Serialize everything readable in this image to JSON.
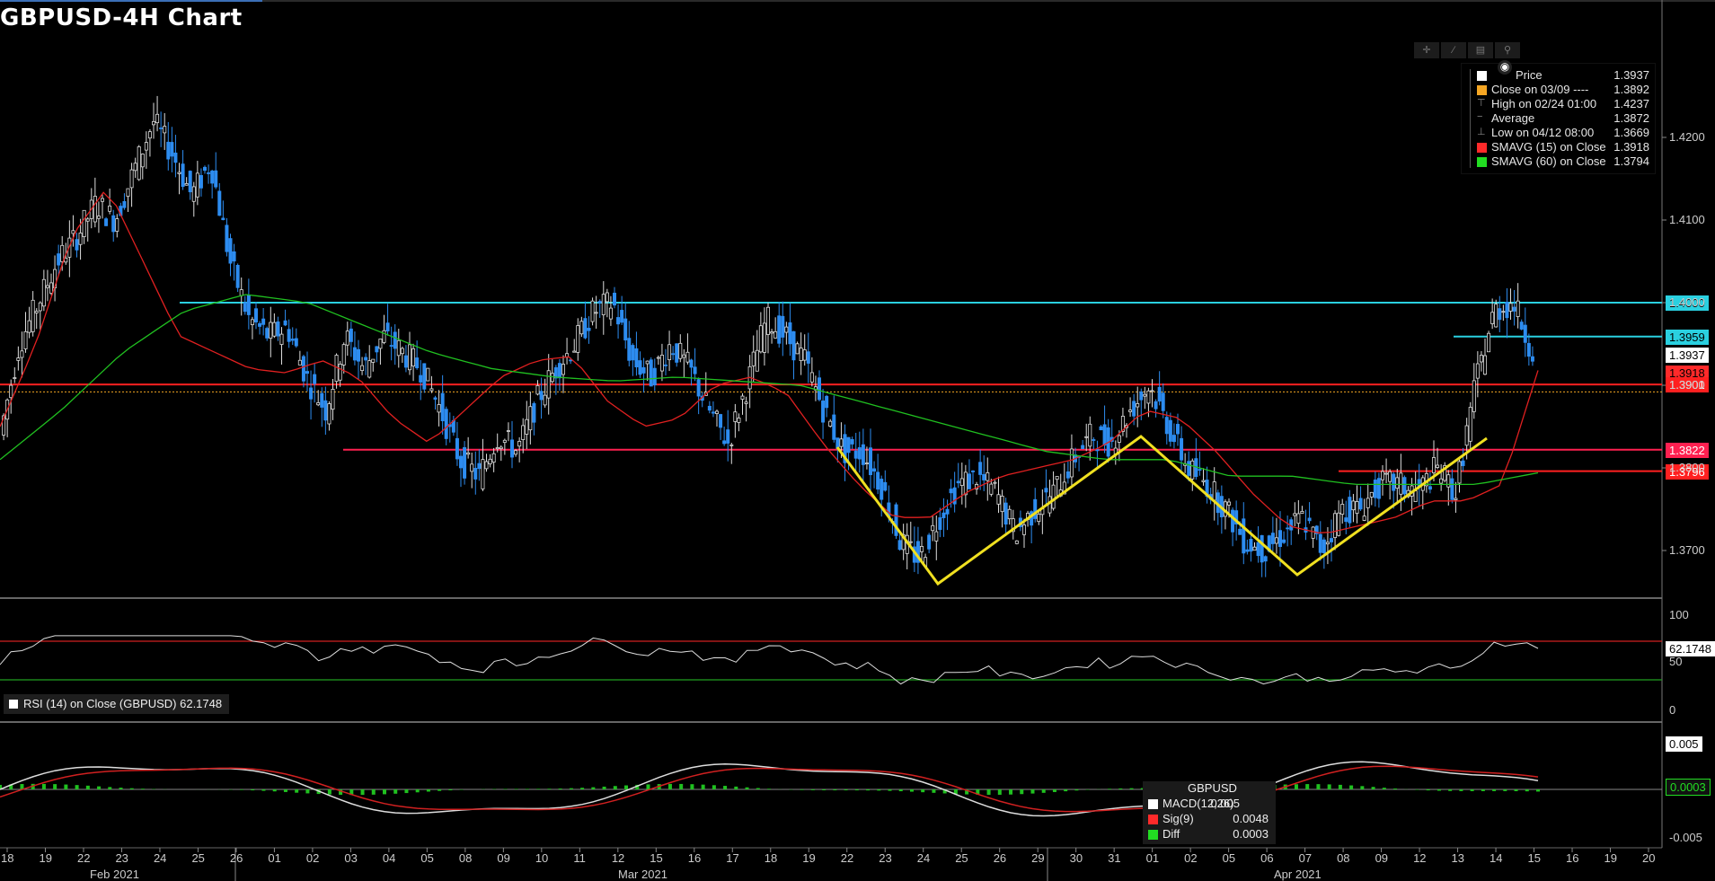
{
  "title": "GBPUSD-4H Chart",
  "toolbar": {
    "icons": [
      "crosshair-icon",
      "draw-line-icon",
      "table-icon",
      "zoom-icon"
    ]
  },
  "legend": {
    "rows": [
      {
        "label": "Price",
        "value": "1.3937",
        "color": "#ffffff"
      },
      {
        "label": "Close on 03/09 ----",
        "value": "1.3892",
        "color": "#f5a623"
      },
      {
        "label": "High on 02/24 01:00",
        "value": "1.4237",
        "color": ""
      },
      {
        "label": "Average",
        "value": "1.3872",
        "color": ""
      },
      {
        "label": "Low on 04/12 08:00",
        "value": "1.3669",
        "color": ""
      },
      {
        "label": "SMAVG (15)  on Close",
        "value": "1.3918",
        "color": "#ff2a2a"
      },
      {
        "label": "SMAVG (60)  on Close",
        "value": "1.3794",
        "color": "#22dd22"
      }
    ]
  },
  "price_tags": [
    {
      "text": "1.4000",
      "value": 1.4,
      "bg": "#2ad0e0",
      "fg": "#000000"
    },
    {
      "text": "1.3959",
      "value": 1.3959,
      "bg": "#2ad0e0",
      "fg": "#000000"
    },
    {
      "text": "1.3937",
      "value": 1.3937,
      "bg": "#ffffff",
      "fg": "#000000"
    },
    {
      "text": "1.3918",
      "value": 1.3918,
      "bg": "#ff2a2a",
      "fg": "#000000"
    },
    {
      "text": "1.3901",
      "value": 1.3901,
      "bg": "#ff2020",
      "fg": "#ffffff"
    },
    {
      "text": "1.3822",
      "value": 1.3822,
      "bg": "#ff2050",
      "fg": "#ffffff"
    },
    {
      "text": "1.3796",
      "value": 1.3796,
      "bg": "#ff2020",
      "fg": "#ffffff"
    }
  ],
  "rsi": {
    "label": "RSI (14)   on Close (GBPUSD) 62.1748",
    "value": "62.1748",
    "ticks": [
      "100",
      "50",
      "0"
    ]
  },
  "macd": {
    "header": "GBPUSD",
    "rows": [
      {
        "label": "MACD(12,26)",
        "value": "0.005",
        "color": "#ffffff"
      },
      {
        "label": "Sig(9)",
        "value": "0.0048",
        "color": "#ff2a2a"
      },
      {
        "label": "Diff",
        "value": "0.0003",
        "color": "#22dd22"
      }
    ],
    "tags": [
      "0.005",
      "0.0003"
    ],
    "ticks": [
      "-0.005"
    ]
  },
  "chart_data": {
    "type": "candlestick",
    "title": "GBPUSD-4H Chart",
    "ylim": [
      1.3655,
      1.4265
    ],
    "yticks": [
      1.37,
      1.38,
      1.39,
      1.4,
      1.41,
      1.42
    ],
    "ytick_labels": [
      "1.3700",
      "1.3800",
      "1.3900",
      "1.4000",
      "1.4100",
      "1.4200"
    ],
    "x_day_labels": [
      "18",
      "19",
      "22",
      "23",
      "24",
      "25",
      "26",
      "01",
      "02",
      "03",
      "04",
      "05",
      "08",
      "09",
      "10",
      "11",
      "12",
      "15",
      "16",
      "17",
      "18",
      "19",
      "22",
      "23",
      "24",
      "25",
      "26",
      "29",
      "30",
      "31",
      "01",
      "02",
      "05",
      "06",
      "07",
      "08",
      "09",
      "12",
      "13",
      "14",
      "15",
      "16",
      "19",
      "20"
    ],
    "months": [
      "Feb 2021",
      "Mar 2021",
      "Apr 2021"
    ],
    "close_path": [
      1.384,
      1.395,
      1.4,
      1.405,
      1.408,
      1.412,
      1.41,
      1.416,
      1.422,
      1.418,
      1.413,
      1.417,
      1.405,
      1.398,
      1.396,
      1.397,
      1.391,
      1.387,
      1.396,
      1.392,
      1.396,
      1.394,
      1.392,
      1.387,
      1.381,
      1.379,
      1.384,
      1.382,
      1.388,
      1.392,
      1.395,
      1.399,
      1.4,
      1.393,
      1.391,
      1.395,
      1.392,
      1.387,
      1.383,
      1.39,
      1.398,
      1.396,
      1.393,
      1.387,
      1.382,
      1.382,
      1.378,
      1.371,
      1.369,
      1.374,
      1.378,
      1.379,
      1.377,
      1.372,
      1.375,
      1.377,
      1.381,
      1.384,
      1.383,
      1.387,
      1.39,
      1.385,
      1.38,
      1.378,
      1.375,
      1.371,
      1.37,
      1.372,
      1.374,
      1.37,
      1.375,
      1.375,
      1.378,
      1.378,
      1.377,
      1.38,
      1.377,
      1.39,
      1.399,
      1.4,
      1.394
    ],
    "sma15_path": [
      1.385,
      1.395,
      1.408,
      1.414,
      1.405,
      1.396,
      1.394,
      1.392,
      1.3915,
      1.393,
      1.391,
      1.386,
      1.383,
      1.387,
      1.391,
      1.393,
      1.3935,
      1.388,
      1.385,
      1.386,
      1.39,
      1.391,
      1.389,
      1.383,
      1.378,
      1.374,
      1.374,
      1.377,
      1.379,
      1.38,
      1.381,
      1.383,
      1.387,
      1.386,
      1.382,
      1.377,
      1.373,
      1.372,
      1.373,
      1.374,
      1.376,
      1.376,
      1.378,
      1.3918
    ],
    "sma60_path": [
      1.381,
      1.387,
      1.394,
      1.399,
      1.401,
      1.4,
      1.397,
      1.394,
      1.392,
      1.391,
      1.3905,
      1.391,
      1.3905,
      1.39,
      1.388,
      1.386,
      1.384,
      1.382,
      1.381,
      1.381,
      1.379,
      1.379,
      1.378,
      1.378,
      1.378,
      1.3794
    ],
    "horizontal_levels": [
      {
        "value": 1.4,
        "color": "#2ad0e0"
      },
      {
        "value": 1.3959,
        "color": "#2ad0e0"
      },
      {
        "value": 1.3901,
        "color": "#ff2020"
      },
      {
        "value": 1.3822,
        "color": "#ff2050"
      },
      {
        "value": 1.3796,
        "color": "#ff2020"
      },
      {
        "value": 1.3892,
        "color": "#f5a623"
      }
    ]
  }
}
